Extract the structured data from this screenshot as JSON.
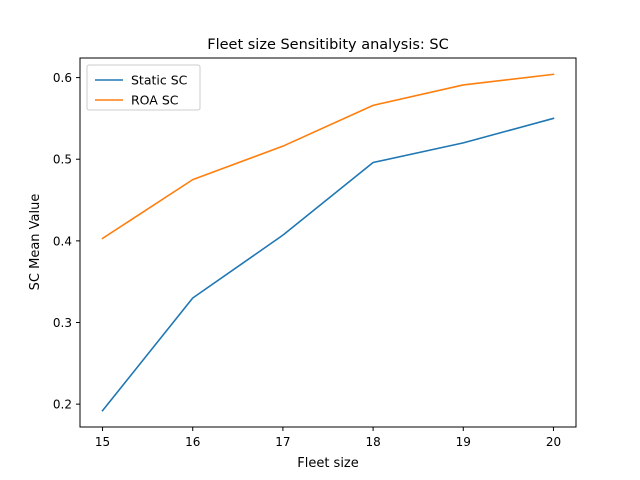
{
  "chart_data": {
    "type": "line",
    "title": "Fleet size Sensitibity analysis: SC",
    "xlabel": "Fleet size",
    "ylabel": "SC Mean Value",
    "x": [
      15,
      16,
      17,
      18,
      19,
      20
    ],
    "xlim": [
      14.75,
      20.25
    ],
    "ylim": [
      0.172,
      0.624
    ],
    "xticks": [
      15,
      16,
      17,
      18,
      19,
      20
    ],
    "yticks": [
      0.2,
      0.3,
      0.4,
      0.5,
      0.6
    ],
    "grid": false,
    "legend_position": "top-left",
    "series": [
      {
        "name": "Static SC",
        "color": "#1f77b4",
        "values": [
          0.192,
          0.33,
          0.407,
          0.496,
          0.52,
          0.55
        ]
      },
      {
        "name": "ROA SC",
        "color": "#ff7f0e",
        "values": [
          0.403,
          0.475,
          0.516,
          0.566,
          0.591,
          0.604
        ]
      }
    ]
  }
}
